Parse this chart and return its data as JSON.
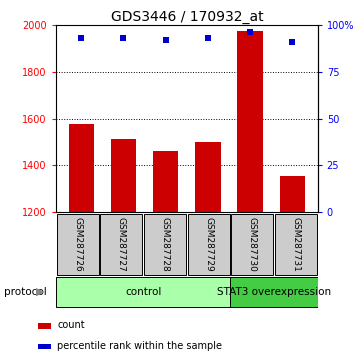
{
  "title": "GDS3446 / 170932_at",
  "categories": [
    "GSM287726",
    "GSM287727",
    "GSM287728",
    "GSM287729",
    "GSM287730",
    "GSM287731"
  ],
  "bar_values": [
    1575,
    1515,
    1460,
    1500,
    1975,
    1355
  ],
  "percentile_values": [
    93,
    93,
    92,
    93,
    96,
    91
  ],
  "ylim_left": [
    1200,
    2000
  ],
  "ylim_right": [
    0,
    100
  ],
  "yticks_left": [
    1200,
    1400,
    1600,
    1800,
    2000
  ],
  "yticks_right": [
    0,
    25,
    50,
    75,
    100
  ],
  "ytick_right_labels": [
    "0",
    "25",
    "50",
    "75",
    "100%"
  ],
  "bar_color": "#cc0000",
  "dot_color": "#0000cc",
  "label_bg_color": "#cccccc",
  "control_color": "#aaffaa",
  "overexpression_color": "#44cc44",
  "control_label": "control",
  "overexpression_label": "STAT3 overexpression",
  "protocol_label": "protocol",
  "legend_count": "count",
  "legend_percentile": "percentile rank within the sample",
  "title_fontsize": 10,
  "tick_fontsize": 7,
  "label_fontsize": 7.5,
  "n_control": 4,
  "n_overexpression": 2
}
